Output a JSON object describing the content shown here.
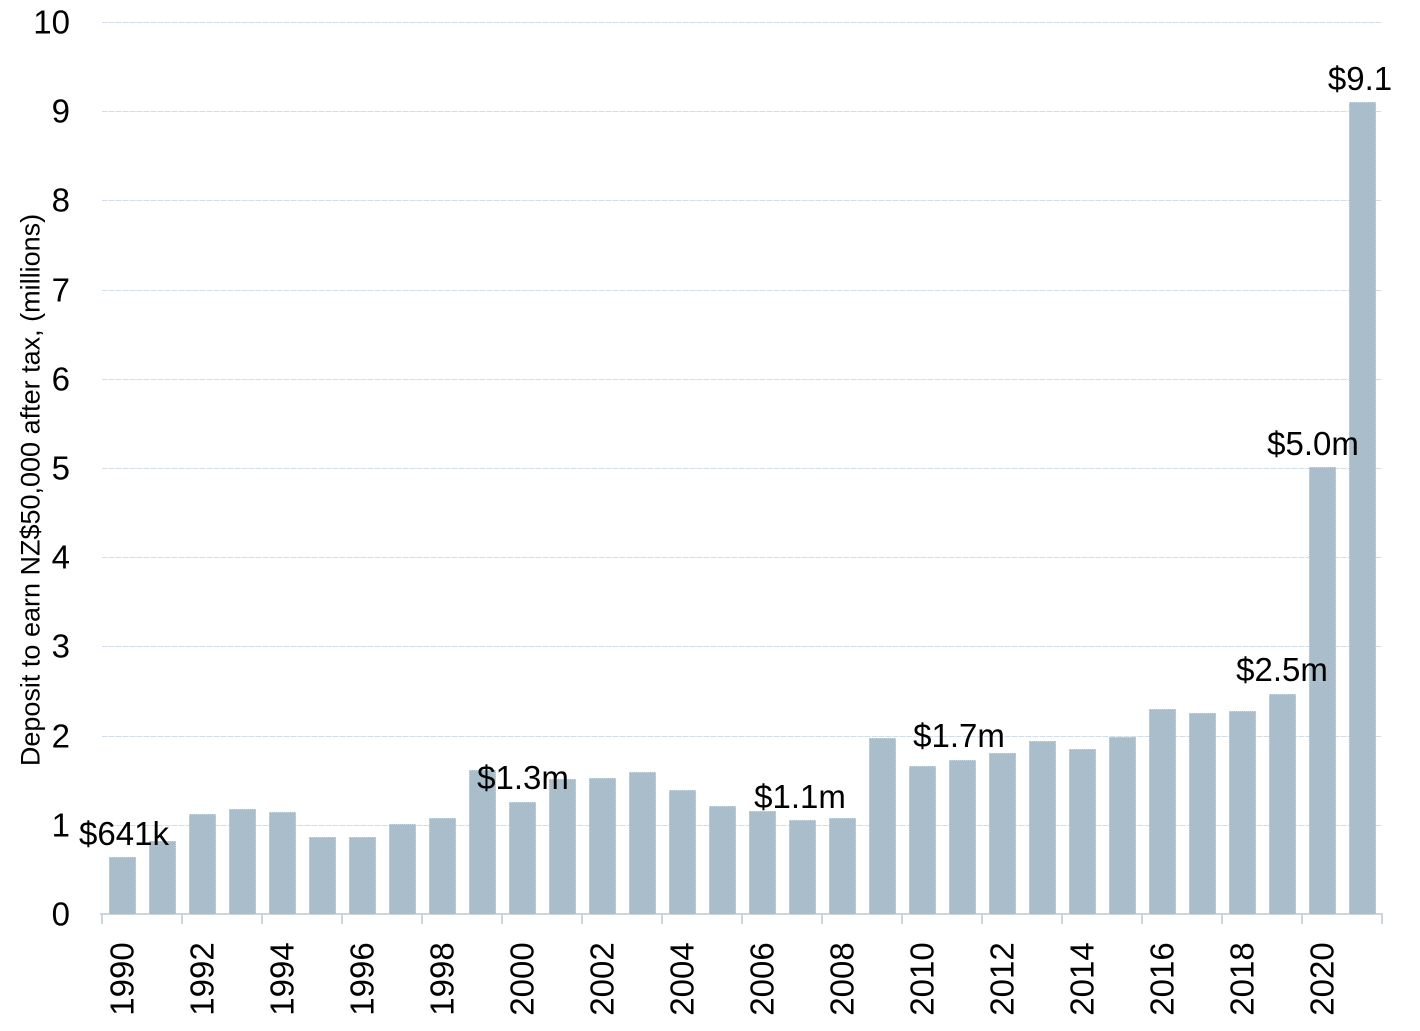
{
  "chart_data": {
    "type": "bar",
    "title": "",
    "xlabel": "",
    "ylabel": "Deposit to earn NZ$50,000 after tax, (millions)",
    "ylim": [
      0,
      10
    ],
    "ytick_step": 1,
    "yticks": [
      0,
      1,
      2,
      3,
      4,
      5,
      6,
      7,
      8,
      9,
      10
    ],
    "grid": true,
    "legend": null,
    "categories": [
      1990,
      1991,
      1992,
      1993,
      1994,
      1995,
      1996,
      1997,
      1998,
      1999,
      2000,
      2001,
      2002,
      2003,
      2004,
      2005,
      2006,
      2007,
      2008,
      2009,
      2010,
      2011,
      2012,
      2013,
      2014,
      2015,
      2016,
      2017,
      2018,
      2019,
      2020,
      2021
    ],
    "values": [
      0.641,
      0.82,
      1.12,
      1.18,
      1.14,
      0.86,
      0.86,
      1.01,
      1.08,
      1.61,
      1.26,
      1.51,
      1.52,
      1.59,
      1.39,
      1.21,
      1.16,
      1.05,
      1.08,
      1.97,
      1.66,
      1.73,
      1.81,
      1.94,
      1.85,
      1.98,
      2.3,
      2.25,
      2.28,
      2.47,
      5.01,
      9.1
    ],
    "xtick_labels": [
      "1990",
      "1992",
      "1994",
      "1996",
      "1998",
      "2000",
      "2002",
      "2004",
      "2006",
      "2008",
      "2010",
      "2012",
      "2014",
      "2016",
      "2018",
      "2020"
    ],
    "annotations": [
      {
        "year": 1990,
        "text": "$641k",
        "dx": 2
      },
      {
        "year": 2000,
        "text": "$1.3m",
        "dx": 1
      },
      {
        "year": 2007,
        "text": "$1.1m",
        "dx": -2
      },
      {
        "year": 2011,
        "text": "$1.7m",
        "dx": -3
      },
      {
        "year": 2019,
        "text": "$2.5m",
        "dx": 0
      },
      {
        "year": 2020,
        "text": "$5.0m",
        "dx": -9
      },
      {
        "year": 2021,
        "text": "$9.1",
        "dx": -2
      }
    ],
    "colors": {
      "bar_fill": "#a9bdcb",
      "bar_border": "#c9d6df",
      "gridline": "#d2dde7",
      "axis_line": "#cdd5dc",
      "text": "#000000",
      "background": "#ffffff"
    }
  }
}
